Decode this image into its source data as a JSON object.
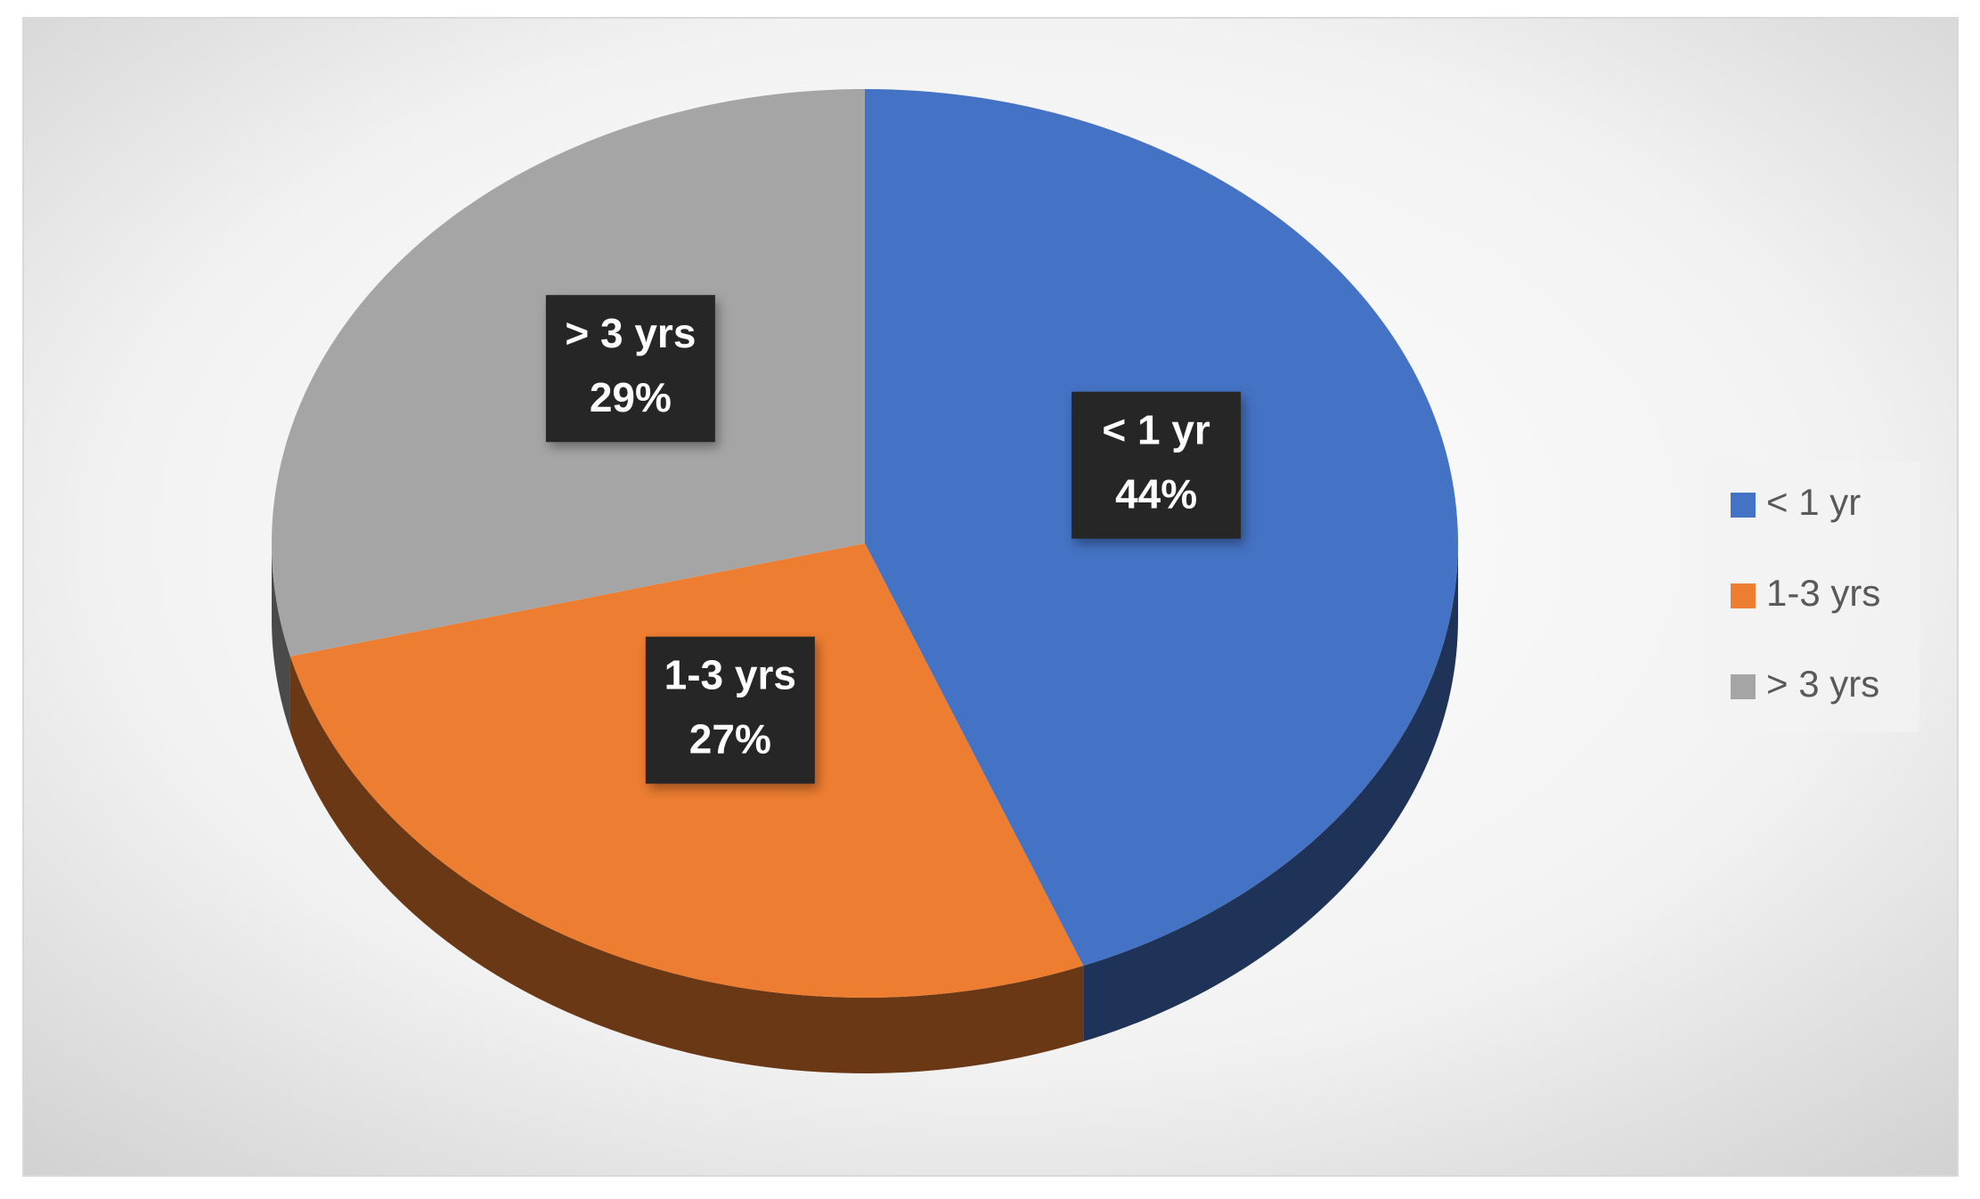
{
  "chart_data": {
    "type": "pie",
    "categories": [
      "< 1 yr",
      "1-3 yrs",
      "> 3 yrs"
    ],
    "values": [
      44,
      27,
      29
    ],
    "value_labels": [
      "44%",
      "27%",
      "29%"
    ],
    "colors": [
      "#4472c4",
      "#ed7d31",
      "#a5a5a5"
    ],
    "legend": "right"
  }
}
